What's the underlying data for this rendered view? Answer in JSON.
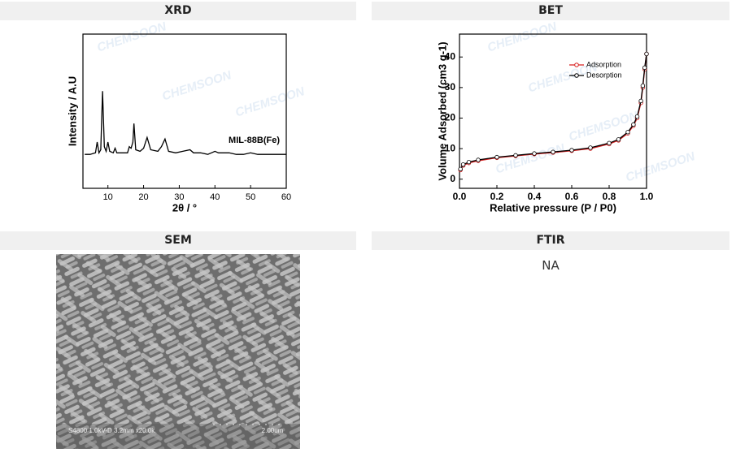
{
  "watermark": "CHEMSOON",
  "panels": [
    {
      "title": "XRD",
      "chart_data": {
        "type": "line",
        "xlabel": "2θ / °",
        "ylabel": "Intensity / A.U",
        "annotation": "MIL-88B(Fe)",
        "xlim": [
          3,
          60
        ],
        "xticks": [
          10,
          20,
          30,
          40,
          50,
          60
        ],
        "ylim": [
          0,
          100
        ],
        "color": "#000000",
        "x": [
          3.5,
          5,
          6.5,
          7,
          7.5,
          8,
          8.5,
          9,
          9.5,
          10,
          10.5,
          11.5,
          12,
          12.5,
          14,
          15.5,
          16,
          16.5,
          17,
          17.3,
          17.8,
          19,
          20,
          21,
          22,
          24,
          25,
          26,
          27,
          29,
          31,
          33,
          34,
          36,
          38,
          40,
          41,
          42,
          44,
          46,
          48,
          50,
          52,
          54,
          56,
          58,
          60
        ],
        "values": [
          22,
          22,
          23,
          30,
          23,
          25,
          63,
          27,
          24,
          30,
          24,
          23,
          26,
          23,
          23,
          23,
          27,
          26,
          30,
          42,
          25,
          24,
          26,
          33,
          25,
          24,
          27,
          32,
          24,
          23,
          24,
          25,
          23,
          23,
          22,
          24,
          23,
          23,
          23,
          22,
          22,
          23,
          22,
          22,
          22,
          22,
          22
        ]
      }
    },
    {
      "title": "BET",
      "chart_data": {
        "type": "line",
        "xlabel": "Relative pressure (P / P0)",
        "ylabel": "Volume Adsorbed (cm3 g-1)",
        "xlim": [
          0,
          1
        ],
        "xticks": [
          {
            "value": 0,
            "label": "0.0"
          },
          0.2,
          0.4,
          0.6,
          0.8,
          {
            "value": 1,
            "label": "1.0"
          }
        ],
        "ylim": [
          -3,
          47.5
        ],
        "yticks": [
          0,
          10,
          20,
          30,
          40
        ],
        "legend": "upper right",
        "x": [
          0.005,
          0.02,
          0.05,
          0.1,
          0.2,
          0.3,
          0.4,
          0.5,
          0.6,
          0.7,
          0.8,
          0.85,
          0.9,
          0.93,
          0.95,
          0.97,
          0.98,
          0.99,
          1
        ],
        "series": [
          {
            "name": "Adsorption",
            "color": "#d62020",
            "values": [
              3,
              4.5,
              5.3,
              6,
              7,
              7.6,
              8.2,
              8.7,
              9.3,
              10,
              11.5,
              12.7,
              15,
              17.5,
              20,
              25,
              30,
              36,
              41
            ]
          },
          {
            "name": "Desorption",
            "color": "#000000",
            "values": [
              3.3,
              4.8,
              5.6,
              6.3,
              7.2,
              7.8,
              8.4,
              8.9,
              9.5,
              10.3,
              11.8,
              13,
              15.4,
              17.9,
              20.5,
              25.6,
              30.6,
              36.5,
              41
            ]
          }
        ]
      }
    },
    {
      "title": "SEM",
      "image_caption": "S4800 1.0kV-D 3.2mm x20.0k",
      "scale_bar": "2.00um"
    },
    {
      "title": "FTIR",
      "text": "NA"
    }
  ]
}
